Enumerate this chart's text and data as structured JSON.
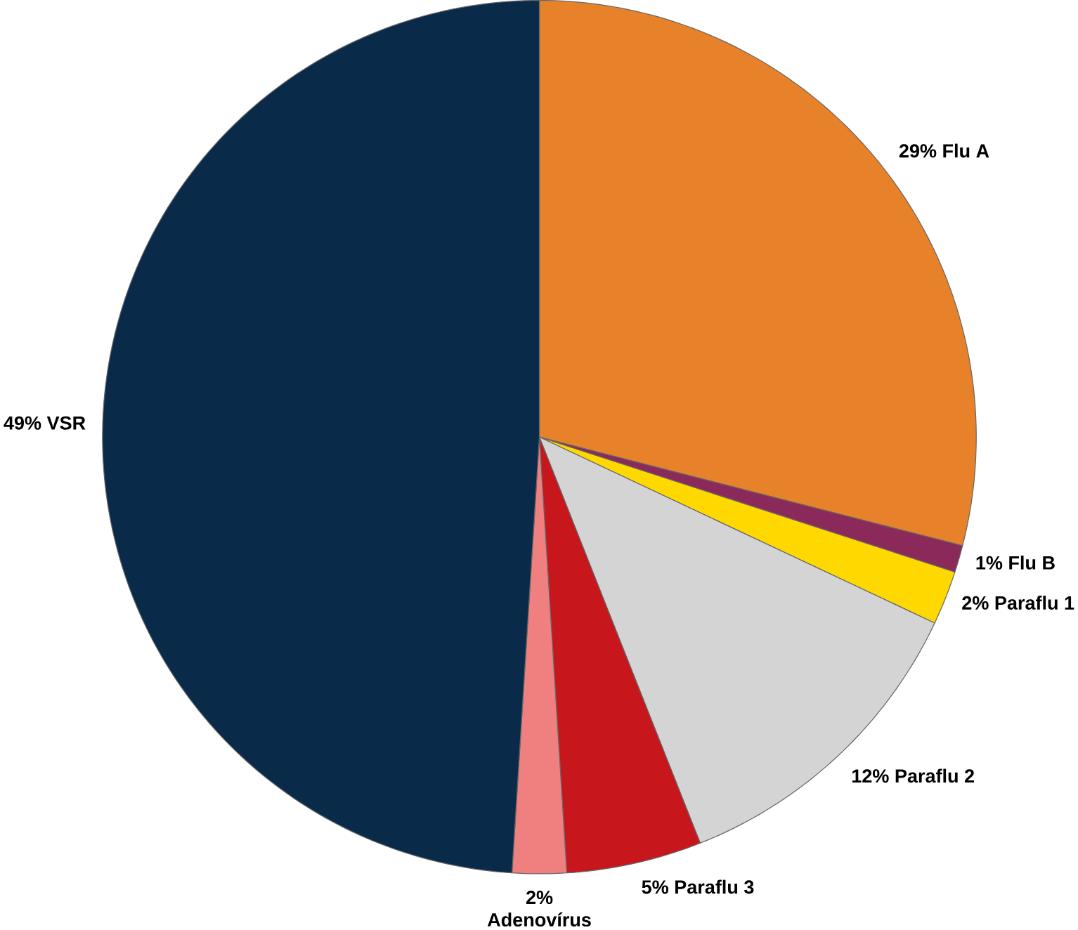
{
  "chart_data": {
    "type": "pie",
    "categories": [
      "Flu A",
      "Flu B",
      "Paraflu 1",
      "Paraflu 2",
      "Paraflu 3",
      "Adenovírus",
      "VSR"
    ],
    "values": [
      29,
      1,
      2,
      12,
      5,
      2,
      49
    ],
    "value_labels": [
      "29%",
      "1%",
      "2%",
      "12%",
      "5%",
      "2%",
      "49%"
    ],
    "colors": [
      "#e8822a",
      "#8b2a5a",
      "#ffd800",
      "#d4d4d4",
      "#c8161d",
      "#f08080",
      "#0a2a4a"
    ]
  }
}
